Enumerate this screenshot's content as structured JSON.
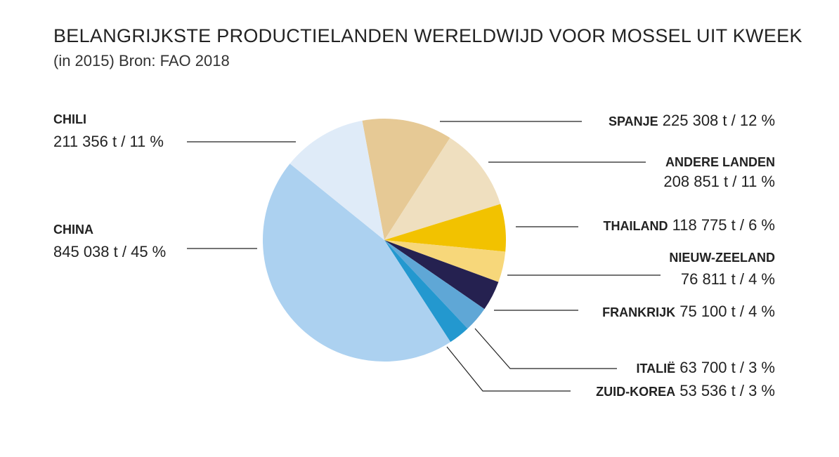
{
  "title": "BELANGRIJKSTE PRODUCTIELANDEN WERELDWIJD VOOR MOSSEL UIT KWEEK",
  "subtitle": "(in 2015) Bron: FAO 2018",
  "chart_data": {
    "type": "pie",
    "slices": [
      {
        "name": "SPANJE",
        "value": 225308,
        "value_label": "225 308 t / 12 %",
        "color": "#e6c995"
      },
      {
        "name": "ANDERE LANDEN",
        "value": 208851,
        "value_label": "208 851 t / 11 %",
        "color": "#efdfbf"
      },
      {
        "name": "THAILAND",
        "value": 118775,
        "value_label": "118 775 t / 6 %",
        "color": "#f2c200"
      },
      {
        "name": "NIEUW-ZEELAND",
        "value": 76811,
        "value_label": "76 811 t / 4 %",
        "color": "#f7d77a"
      },
      {
        "name": "FRANKRIJK",
        "value": 75100,
        "value_label": "75 100 t / 4 %",
        "color": "#252150"
      },
      {
        "name": "ITALIË",
        "value": 63700,
        "value_label": "63 700 t / 3 %",
        "color": "#5fa7d6"
      },
      {
        "name": "ZUID-KOREA",
        "value": 53536,
        "value_label": "53 536 t / 3 %",
        "color": "#2398cf"
      },
      {
        "name": "CHINA",
        "value": 845038,
        "value_label": "845 038 t / 45 %",
        "color": "#acd1f0"
      },
      {
        "name": "CHILI",
        "value": 211356,
        "value_label": "211 356 t / 11 %",
        "color": "#dfebf8"
      }
    ]
  }
}
